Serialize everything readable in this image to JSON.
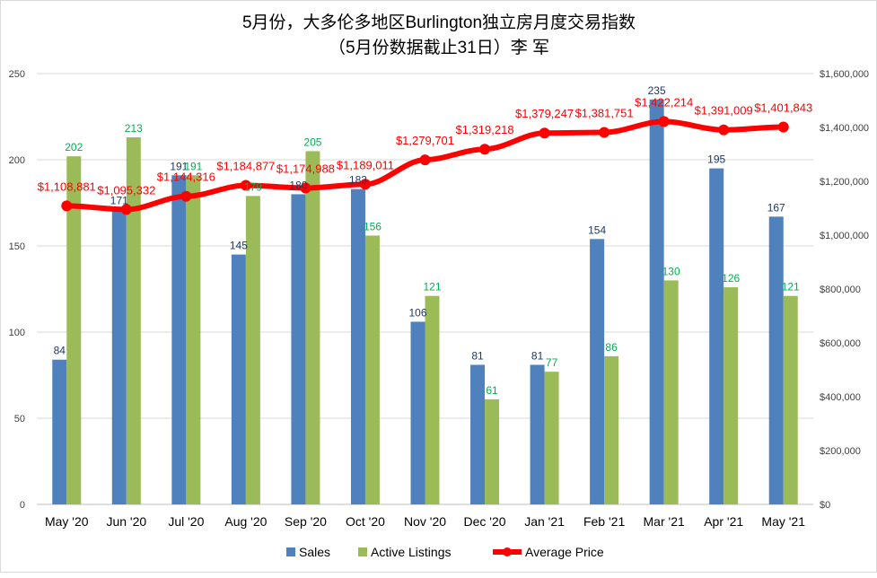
{
  "chart_data": {
    "type": "bar",
    "title": "5月份，大多伦多地区Burlington独立房月度交易指数",
    "subtitle": "（5月份数据截止31日）李 军",
    "categories": [
      "May '20",
      "Jun '20",
      "Jul '20",
      "Aug '20",
      "Sep '20",
      "Oct '20",
      "Nov '20",
      "Dec '20",
      "Jan '21",
      "Feb '21",
      "Mar '21",
      "Apr '21",
      "May '21"
    ],
    "series": [
      {
        "name": "Sales",
        "type": "bar",
        "axis": "left",
        "color": "#4f81bd",
        "label_color": "#1f3864",
        "values": [
          84,
          171,
          191,
          145,
          180,
          183,
          106,
          81,
          81,
          154,
          235,
          195,
          167
        ]
      },
      {
        "name": "Active Listings",
        "type": "bar",
        "axis": "left",
        "color": "#9bbb59",
        "label_color": "#00b050",
        "values": [
          202,
          213,
          191,
          179,
          205,
          156,
          121,
          61,
          77,
          86,
          130,
          126,
          121
        ]
      },
      {
        "name": "Average Price",
        "type": "line",
        "axis": "right",
        "color": "#ff0000",
        "label_color": "#ff0000",
        "values": [
          1108881,
          1095332,
          1144316,
          1184877,
          1174988,
          1189011,
          1279701,
          1319218,
          1379247,
          1381751,
          1422214,
          1391009,
          1401843
        ]
      }
    ],
    "left_axis": {
      "ylim": [
        0,
        250
      ],
      "ticks": [
        0,
        50,
        100,
        150,
        200,
        250
      ]
    },
    "right_axis": {
      "ylim": [
        0,
        1600000
      ],
      "ticks": [
        "$0",
        "$200,000",
        "$400,000",
        "$600,000",
        "$800,000",
        "$1,000,000",
        "$1,200,000",
        "$1,400,000",
        "$1,600,000"
      ]
    },
    "grid": true,
    "legend": "bottom"
  }
}
